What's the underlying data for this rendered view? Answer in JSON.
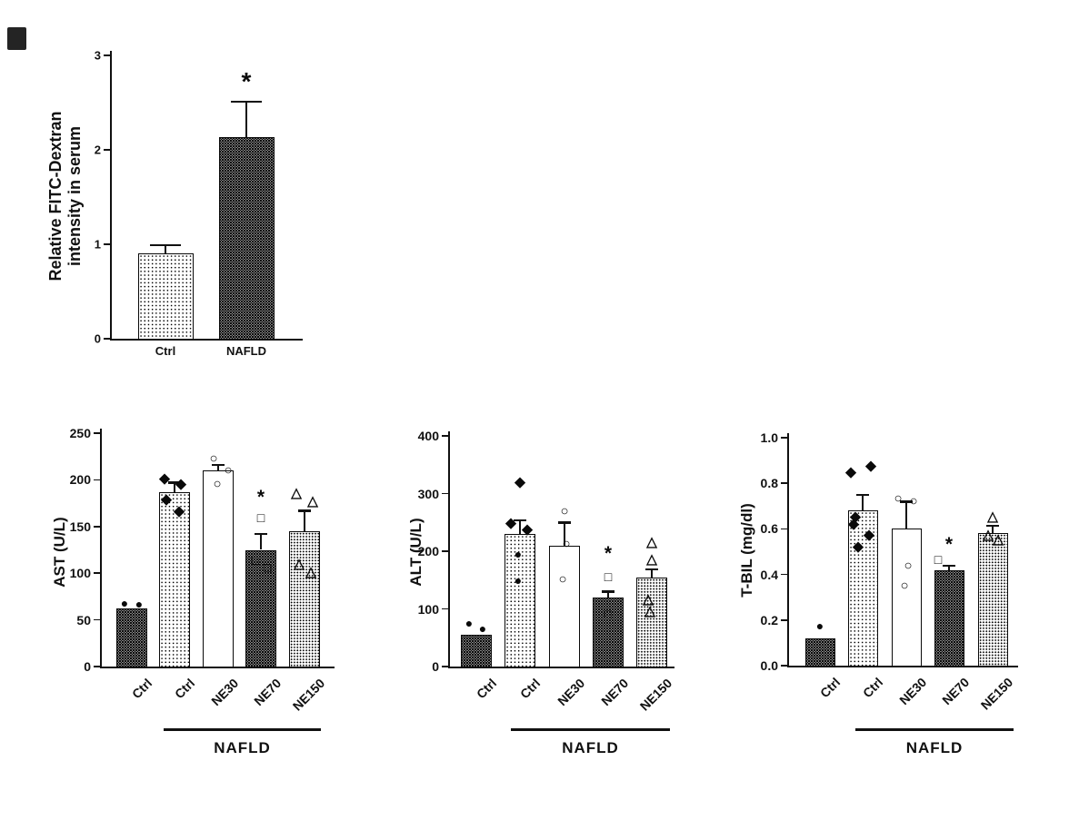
{
  "figure": {
    "description_colors": {
      "ink": "#111111",
      "background": "#ffffff"
    },
    "group_label": "NAFLD"
  },
  "chart_data": [
    {
      "id": "fitc",
      "type": "bar",
      "title": "",
      "ylabel": "Relative FITC-Dextran intensity in serum",
      "ylabel_lines": [
        "Relative FITC-Dextran",
        "intensity in serum"
      ],
      "ylim": [
        0,
        3
      ],
      "ytick_values": [
        0,
        1,
        2,
        3
      ],
      "ytick_labels": [
        "0",
        "1",
        "2",
        "3"
      ],
      "categories": [
        "Ctrl",
        "NAFLD"
      ],
      "bars": [
        {
          "label": "Ctrl",
          "value": 0.9,
          "err": 0.09,
          "pattern": "light",
          "points": []
        },
        {
          "label": "NAFLD",
          "value": 2.13,
          "err": 0.38,
          "pattern": "dark",
          "points": [],
          "sig": {
            "symbol": "*",
            "at": 2.72
          }
        }
      ],
      "group": null
    },
    {
      "id": "ast",
      "type": "bar",
      "title": "",
      "ylabel": "AST (U/L)",
      "ylabel_lines": [
        "AST (U/L)"
      ],
      "ylim": [
        0,
        250
      ],
      "ytick_values": [
        0,
        50,
        100,
        150,
        200,
        250
      ],
      "ytick_labels": [
        "0",
        "50",
        "100",
        "150",
        "200",
        "250"
      ],
      "categories": [
        "Ctrl",
        "Ctrl",
        "NE30",
        "NE70",
        "NE150"
      ],
      "bars": [
        {
          "label": "Ctrl",
          "value": 62,
          "err": 0,
          "pattern": "dark",
          "points": [
            {
              "shape": "filled-circle",
              "v": 68,
              "dx": -8
            },
            {
              "shape": "filled-circle",
              "v": 67,
              "dx": 8
            }
          ]
        },
        {
          "label": "Ctrl",
          "value": 187,
          "err": 10,
          "pattern": "light",
          "points": [
            {
              "shape": "filled-diamond",
              "v": 201,
              "dx": -11
            },
            {
              "shape": "filled-diamond",
              "v": 196,
              "dx": 7
            },
            {
              "shape": "filled-diamond",
              "v": 179,
              "dx": -9
            },
            {
              "shape": "filled-diamond",
              "v": 166,
              "dx": 5
            }
          ]
        },
        {
          "label": "NE30",
          "value": 210,
          "err": 6,
          "pattern": "white",
          "points": [
            {
              "shape": "open-circle",
              "v": 223,
              "dx": -5
            },
            {
              "shape": "open-circle",
              "v": 210,
              "dx": 11
            },
            {
              "shape": "open-circle",
              "v": 196,
              "dx": -1
            }
          ]
        },
        {
          "label": "NE70",
          "value": 125,
          "err": 17,
          "pattern": "dark",
          "sig": {
            "symbol": "*",
            "at": 181
          },
          "points": [
            {
              "shape": "open-square",
              "v": 160,
              "dx": 0
            },
            {
              "shape": "open-square",
              "v": 114,
              "dx": -6
            },
            {
              "shape": "open-square",
              "v": 106,
              "dx": 7
            }
          ]
        },
        {
          "label": "NE150",
          "value": 145,
          "err": 22,
          "pattern": "medium",
          "points": [
            {
              "shape": "open-triangle",
              "v": 186,
              "dx": -9
            },
            {
              "shape": "open-triangle",
              "v": 177,
              "dx": 9
            },
            {
              "shape": "open-triangle",
              "v": 110,
              "dx": -6
            },
            {
              "shape": "open-triangle",
              "v": 101,
              "dx": 7
            }
          ]
        }
      ],
      "group": {
        "label": "NAFLD",
        "from_bar": 1,
        "to_bar": 4
      }
    },
    {
      "id": "alt",
      "type": "bar",
      "title": "",
      "ylabel": "ALT (U/L)",
      "ylabel_lines": [
        "ALT (U/L)"
      ],
      "ylim": [
        0,
        400
      ],
      "ytick_values": [
        0,
        100,
        200,
        300,
        400
      ],
      "ytick_labels": [
        "0",
        "100",
        "200",
        "300",
        "400"
      ],
      "categories": [
        "Ctrl",
        "Ctrl",
        "NE30",
        "NE70",
        "NE150"
      ],
      "bars": [
        {
          "label": "Ctrl",
          "value": 55,
          "err": 0,
          "pattern": "dark",
          "points": [
            {
              "shape": "filled-circle",
              "v": 76,
              "dx": -8
            },
            {
              "shape": "filled-circle",
              "v": 66,
              "dx": 7
            }
          ]
        },
        {
          "label": "Ctrl",
          "value": 230,
          "err": 24,
          "pattern": "light",
          "points": [
            {
              "shape": "filled-diamond",
              "v": 320,
              "dx": 0
            },
            {
              "shape": "filled-diamond",
              "v": 249,
              "dx": -10
            },
            {
              "shape": "filled-diamond",
              "v": 238,
              "dx": 8
            },
            {
              "shape": "filled-circle",
              "v": 196,
              "dx": -2
            },
            {
              "shape": "filled-circle",
              "v": 150,
              "dx": -2
            }
          ]
        },
        {
          "label": "NE30",
          "value": 210,
          "err": 40,
          "pattern": "white",
          "points": [
            {
              "shape": "open-circle",
              "v": 270,
              "dx": 0
            },
            {
              "shape": "open-circle",
              "v": 212,
              "dx": 2
            },
            {
              "shape": "open-circle",
              "v": 151,
              "dx": -2
            }
          ]
        },
        {
          "label": "NE70",
          "value": 120,
          "err": 10,
          "pattern": "dark",
          "sig": {
            "symbol": "*",
            "at": 196
          },
          "points": [
            {
              "shape": "open-square",
              "v": 156,
              "dx": 0
            },
            {
              "shape": "open-square",
              "v": 91,
              "dx": 0
            }
          ]
        },
        {
          "label": "NE150",
          "value": 155,
          "err": 14,
          "pattern": "medium",
          "points": [
            {
              "shape": "open-triangle",
              "v": 216,
              "dx": 0
            },
            {
              "shape": "open-triangle",
              "v": 186,
              "dx": 0
            },
            {
              "shape": "open-triangle",
              "v": 116,
              "dx": -4
            },
            {
              "shape": "open-triangle",
              "v": 96,
              "dx": -2
            }
          ]
        }
      ],
      "group": {
        "label": "NAFLD",
        "from_bar": 1,
        "to_bar": 4
      }
    },
    {
      "id": "tbil",
      "type": "bar",
      "title": "",
      "ylabel": "T-BIL (mg/dl)",
      "ylabel_lines": [
        "T-BIL (mg/dl)"
      ],
      "ylim": [
        0,
        1
      ],
      "ytick_values": [
        0,
        0.2,
        0.4,
        0.6,
        0.8,
        1.0
      ],
      "ytick_labels": [
        "0.0",
        "0.2",
        "0.4",
        "0.6",
        "0.8",
        "1.0"
      ],
      "categories": [
        "Ctrl",
        "Ctrl",
        "NE30",
        "NE70",
        "NE150"
      ],
      "bars": [
        {
          "label": "Ctrl",
          "value": 0.12,
          "err": 0,
          "pattern": "dark",
          "points": [
            {
              "shape": "filled-circle",
              "v": 0.175,
              "dx": 0
            }
          ]
        },
        {
          "label": "Ctrl",
          "value": 0.68,
          "err": 0.07,
          "pattern": "light",
          "points": [
            {
              "shape": "filled-diamond",
              "v": 0.85,
              "dx": -13
            },
            {
              "shape": "filled-diamond",
              "v": 0.875,
              "dx": 9
            },
            {
              "shape": "filled-diamond",
              "v": 0.655,
              "dx": -8
            },
            {
              "shape": "filled-diamond",
              "v": 0.62,
              "dx": -10
            },
            {
              "shape": "filled-diamond",
              "v": 0.575,
              "dx": 7
            },
            {
              "shape": "filled-diamond",
              "v": 0.52,
              "dx": -5
            }
          ]
        },
        {
          "label": "NE30",
          "value": 0.6,
          "err": 0.12,
          "pattern": "white",
          "points": [
            {
              "shape": "open-circle",
              "v": 0.735,
              "dx": -9
            },
            {
              "shape": "open-circle",
              "v": 0.72,
              "dx": 8
            },
            {
              "shape": "open-circle",
              "v": 0.44,
              "dx": 2
            },
            {
              "shape": "open-circle",
              "v": 0.35,
              "dx": -2
            }
          ]
        },
        {
          "label": "NE70",
          "value": 0.42,
          "err": 0.02,
          "pattern": "dark",
          "sig": {
            "symbol": "*",
            "at": 0.53
          },
          "points": [
            {
              "shape": "open-square",
              "v": 0.465,
              "dx": -12
            }
          ]
        },
        {
          "label": "NE150",
          "value": 0.58,
          "err": 0.035,
          "pattern": "medium",
          "points": [
            {
              "shape": "open-triangle",
              "v": 0.655,
              "dx": 0
            },
            {
              "shape": "open-triangle",
              "v": 0.575,
              "dx": -5
            },
            {
              "shape": "open-triangle",
              "v": 0.555,
              "dx": 6
            }
          ]
        }
      ],
      "group": {
        "label": "NAFLD",
        "from_bar": 1,
        "to_bar": 4
      }
    }
  ]
}
